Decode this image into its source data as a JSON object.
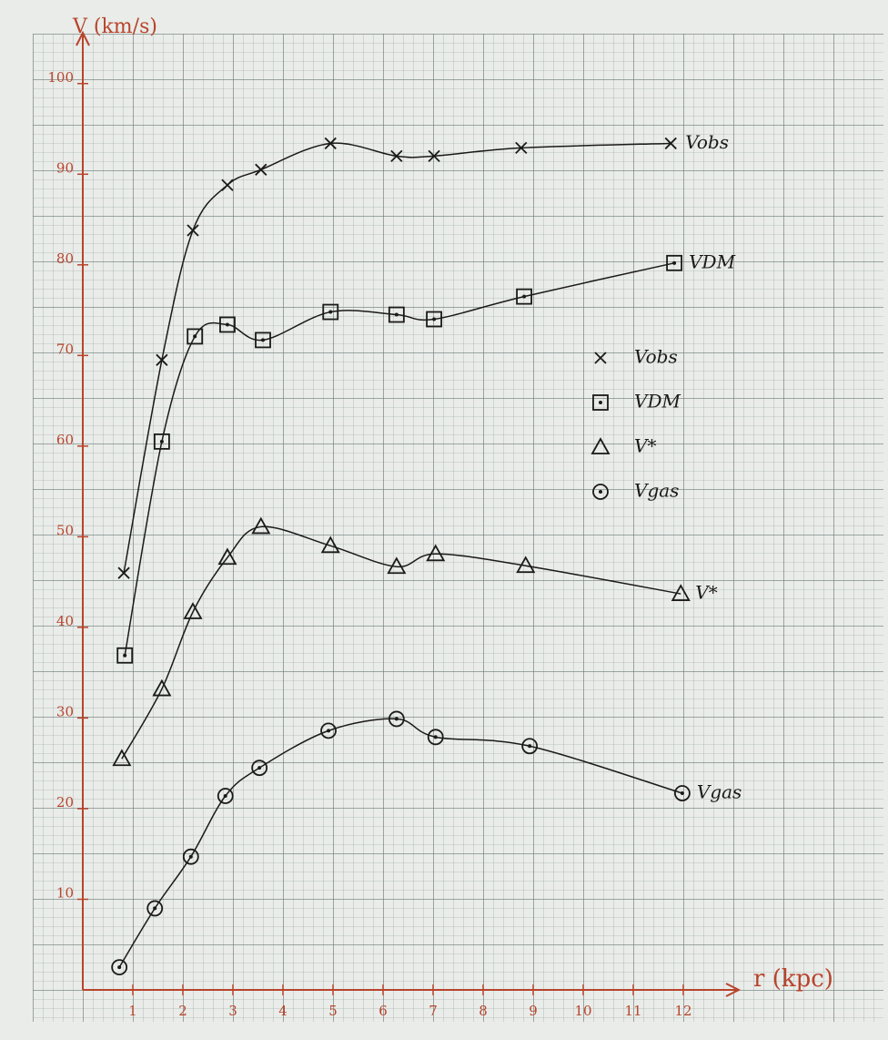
{
  "chart_data": {
    "type": "line",
    "x_label": "r (kpc)",
    "y_label": "V (km/s)",
    "xlim": [
      0,
      13
    ],
    "ylim": [
      0,
      105
    ],
    "xticks": [
      1,
      2,
      3,
      4,
      5,
      6,
      7,
      8,
      9,
      10,
      11,
      12
    ],
    "yticks": [
      10,
      20,
      30,
      40,
      50,
      60,
      70,
      80,
      90,
      100
    ],
    "axis_color": "#b8442c",
    "series": [
      {
        "name": "Vobs",
        "color": "#1a1a1a",
        "marker": "x",
        "x": [
          0.82,
          1.58,
          2.2,
          2.89,
          3.56,
          4.95,
          6.27,
          7.02,
          8.76,
          11.75
        ],
        "values": [
          46.0,
          69.5,
          83.8,
          88.8,
          90.5,
          93.4,
          92.0,
          92.0,
          92.9,
          93.4
        ]
      },
      {
        "name": "VDM",
        "color": "#1a1a1a",
        "marker": "square-dot",
        "x": [
          0.84,
          1.58,
          2.24,
          2.89,
          3.6,
          4.95,
          6.27,
          7.02,
          8.82,
          11.82
        ],
        "values": [
          36.9,
          60.5,
          72.1,
          73.4,
          71.7,
          74.8,
          74.5,
          74.0,
          76.5,
          80.2
        ]
      },
      {
        "name": "V*",
        "color": "#1a1a1a",
        "marker": "triangle",
        "x": [
          0.78,
          1.58,
          2.2,
          2.89,
          3.56,
          4.95,
          6.27,
          7.05,
          8.85,
          11.95
        ],
        "values": [
          25.5,
          33.2,
          41.7,
          47.7,
          51.1,
          49.0,
          46.7,
          48.1,
          46.8,
          43.7
        ]
      },
      {
        "name": "Vgas",
        "color": "#1a1a1a",
        "marker": "circle-dot",
        "x": [
          0.73,
          1.44,
          2.16,
          2.85,
          3.53,
          4.91,
          6.27,
          7.05,
          8.93,
          11.98
        ],
        "values": [
          2.5,
          9.0,
          14.7,
          21.4,
          24.5,
          28.6,
          29.9,
          27.9,
          26.9,
          21.7
        ]
      }
    ]
  }
}
